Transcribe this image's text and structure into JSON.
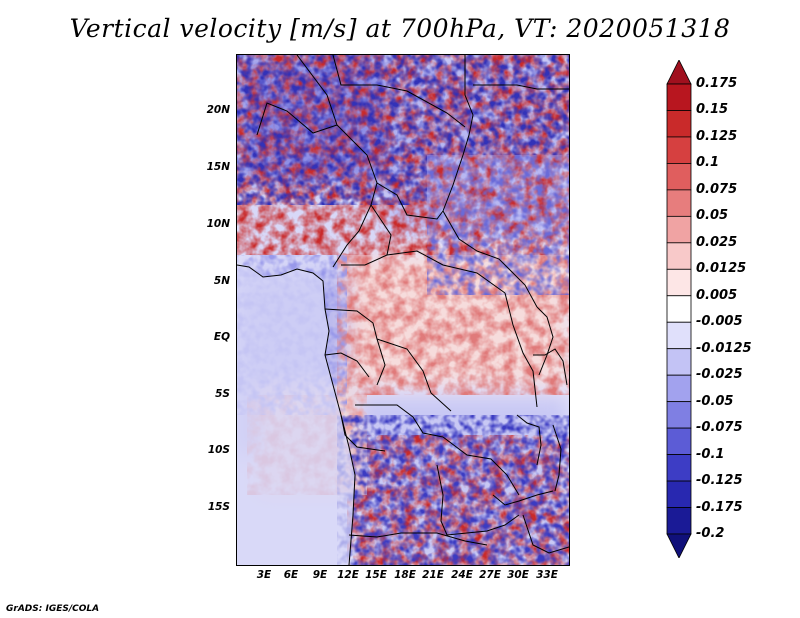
{
  "title": "Vertical velocity [m/s] at 700hPa, VT: 2020051318",
  "credit": "GrADS: IGES/COLA",
  "map": {
    "y_ticks": [
      "20N",
      "15N",
      "10N",
      "5N",
      "EQ",
      "5S",
      "10S",
      "15S"
    ],
    "x_ticks": [
      "3E",
      "6E",
      "9E",
      "12E",
      "15E",
      "18E",
      "21E",
      "24E",
      "27E",
      "30E",
      "33E"
    ]
  },
  "colorbar": {
    "labels": [
      "0.175",
      "0.15",
      "0.125",
      "0.1",
      "0.075",
      "0.05",
      "0.025",
      "0.0125",
      "0.005",
      "-0.005",
      "-0.0125",
      "-0.025",
      "-0.05",
      "-0.075",
      "-0.1",
      "-0.125",
      "-0.175",
      "-0.2"
    ],
    "colors": [
      "#a0101e",
      "#b8161f",
      "#c92a2a",
      "#d64040",
      "#e05e5e",
      "#e77d7d",
      "#f0a3a3",
      "#f8c9c9",
      "#fde6e6",
      "#ffffff",
      "#e0e0fb",
      "#c3c3f5",
      "#a2a2ee",
      "#7f7fe3",
      "#5c5cd6",
      "#3d3dc5",
      "#2828b0",
      "#1a1a96",
      "#10107a"
    ]
  }
}
